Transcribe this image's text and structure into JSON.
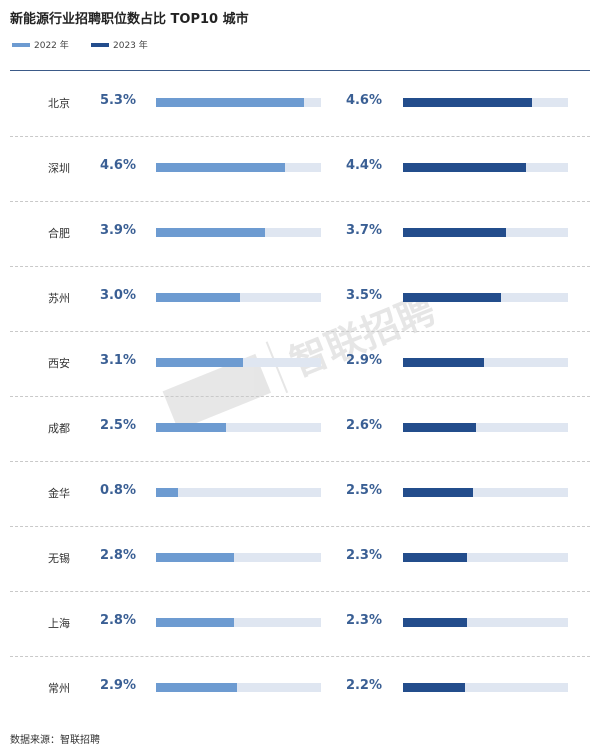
{
  "title": "新能源行业招聘职位数占比 TOP10 城市",
  "source": "数据来源：智联招聘",
  "watermark": "智联招聘",
  "colors": {
    "series_2022": "#6d9bd1",
    "series_2023": "#234d8c",
    "track": "#dfe6f1",
    "value_text": "#3a5f94"
  },
  "chart_data": {
    "type": "bar",
    "title": "新能源行业招聘职位数占比 TOP10 城市",
    "categories": [
      "北京",
      "深圳",
      "合肥",
      "苏州",
      "西安",
      "成都",
      "金华",
      "无锡",
      "上海",
      "常州"
    ],
    "value_labels_2022": [
      "5.3%",
      "4.6%",
      "3.9%",
      "3.0%",
      "3.1%",
      "2.5%",
      "0.8%",
      "2.8%",
      "2.8%",
      "2.9%"
    ],
    "value_labels_2023": [
      "4.6%",
      "4.4%",
      "3.7%",
      "3.5%",
      "2.9%",
      "2.6%",
      "2.5%",
      "2.3%",
      "2.3%",
      "2.2%"
    ],
    "series": [
      {
        "name": "2022 年",
        "values": [
          5.3,
          4.6,
          3.9,
          3.0,
          3.1,
          2.5,
          0.8,
          2.8,
          2.8,
          2.9
        ]
      },
      {
        "name": "2023 年",
        "values": [
          4.6,
          4.4,
          3.7,
          3.5,
          2.9,
          2.6,
          2.5,
          2.3,
          2.3,
          2.2
        ]
      }
    ],
    "xlim": [
      0,
      5.9
    ],
    "legend": "top-left"
  }
}
